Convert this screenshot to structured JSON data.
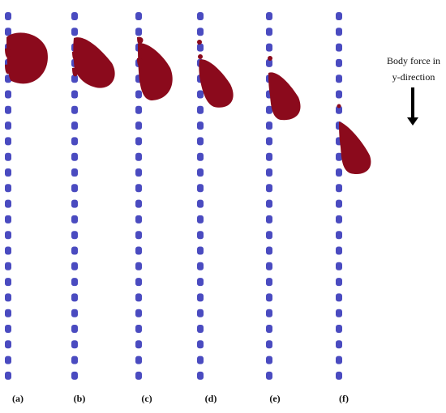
{
  "panels": [
    {
      "label": "(a)"
    },
    {
      "label": "(b)"
    },
    {
      "label": "(c)"
    },
    {
      "label": "(d)"
    },
    {
      "label": "(e)"
    },
    {
      "label": "(f)"
    }
  ],
  "annotation": {
    "line1": "Body force in",
    "line2": "y-direction",
    "arrow_icon": "arrow-down-icon"
  },
  "colors": {
    "post": "#4a4bc0",
    "droplet": "#8b0a1c",
    "arrow": "#000000"
  }
}
